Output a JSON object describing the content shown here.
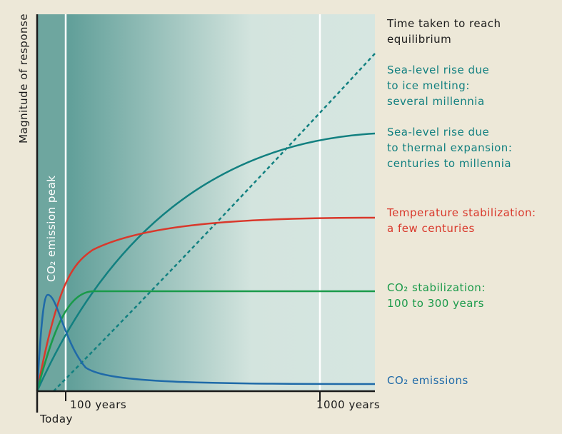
{
  "y_axis_label": "Magnitude of response",
  "band_label": "CO₂ emission peak",
  "x_labels": {
    "today": "Today",
    "hundred": "100 years",
    "thousand": "1000 years"
  },
  "labels": [
    {
      "lines": [
        "Time taken to reach",
        "equilibrium"
      ],
      "color": "#1a1a1a"
    },
    {
      "lines": [
        "Sea-level rise due",
        "to ice melting:",
        "several millennia"
      ],
      "color": "#128080"
    },
    {
      "lines": [
        "Sea-level rise due",
        "to thermal expansion:",
        "centuries to millennia"
      ],
      "color": "#128080"
    },
    {
      "lines": [
        "Temperature stabilization:",
        "a few centuries"
      ],
      "color": "#d9382b"
    },
    {
      "lines": [
        "CO₂ stabilization:",
        "100 to 300 years"
      ],
      "color": "#1a9a4a"
    },
    {
      "lines": [
        "CO₂ emissions"
      ],
      "color": "#1f6aa8"
    }
  ]
}
